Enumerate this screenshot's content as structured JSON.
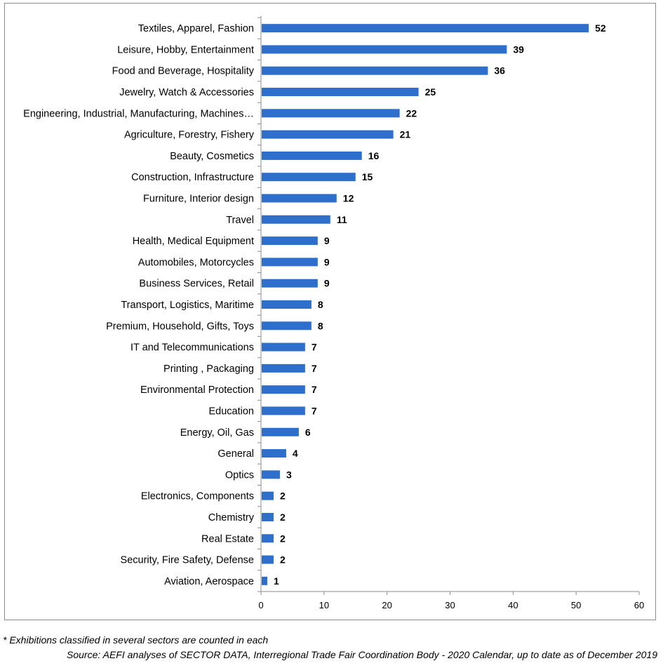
{
  "chart_data": {
    "type": "bar",
    "orientation": "horizontal",
    "categories": [
      "Textiles, Apparel, Fashion",
      "Leisure, Hobby, Entertainment",
      "Food and Beverage, Hospitality",
      "Jewelry, Watch & Accessories",
      "Engineering, Industrial, Manufacturing, Machines…",
      "Agriculture, Forestry, Fishery",
      "Beauty, Cosmetics",
      "Construction, Infrastructure",
      "Furniture, Interior design",
      "Travel",
      "Health, Medical Equipment",
      "Automobiles, Motorcycles",
      "Business Services, Retail",
      "Transport, Logistics, Maritime",
      "Premium, Household, Gifts, Toys",
      "IT and Telecommunications",
      "Printing , Packaging",
      "Environmental Protection",
      "Education",
      "Energy, Oil, Gas",
      "General",
      "Optics",
      "Electronics, Components",
      "Chemistry",
      "Real Estate",
      "Security, Fire Safety, Defense",
      "Aviation, Aerospace"
    ],
    "values": [
      52,
      39,
      36,
      25,
      22,
      21,
      16,
      15,
      12,
      11,
      9,
      9,
      9,
      8,
      8,
      7,
      7,
      7,
      7,
      6,
      4,
      3,
      2,
      2,
      2,
      2,
      1
    ],
    "xlim": [
      0,
      60
    ],
    "xticks": [
      0,
      10,
      20,
      30,
      40,
      50,
      60
    ],
    "title": "",
    "xlabel": "",
    "ylabel": "",
    "grid": false,
    "legend": "none",
    "bar_color": "#2f6fcc"
  },
  "notes": {
    "footnote": "* Exhibitions classified in several sectors are counted in each",
    "source": "Source: AEFI analyses of SECTOR DATA, Interregional Trade Fair Coordination Body - 2020 Calendar, up to date as of December 2019"
  }
}
